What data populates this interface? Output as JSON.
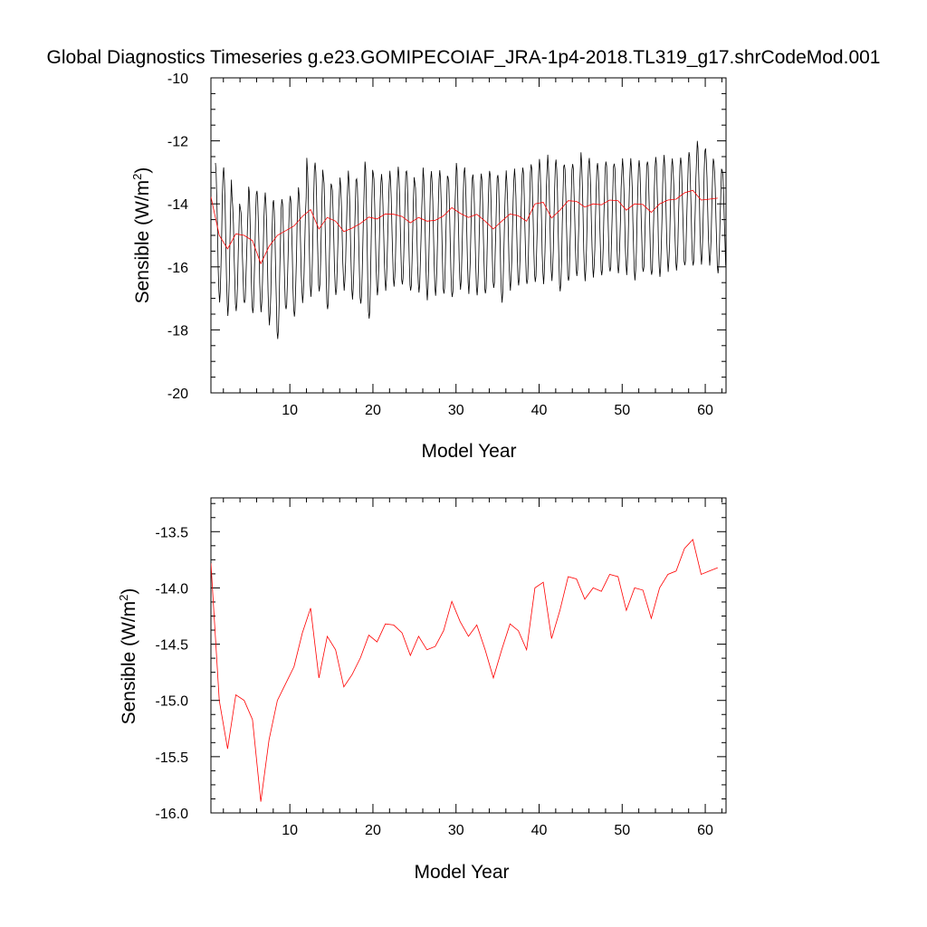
{
  "title": "Global Diagnostics Timeseries g.e23.GOMIPECOIAF_JRA-1p4-2018.TL319_g17.shrCodeMod.001",
  "colors": {
    "monthly": "#000000",
    "annual": "#ff0000"
  },
  "chart_data": [
    {
      "type": "line",
      "xlabel": "Model Year",
      "ylabel_text": "Sensible (W/m",
      "ylabel_sup": "2",
      "ylabel_close": ")",
      "xlim": [
        0.5,
        62.5
      ],
      "ylim": [
        -20,
        -10
      ],
      "xticks": [
        10,
        20,
        30,
        40,
        50,
        60
      ],
      "xtick_labels": [
        "10",
        "20",
        "30",
        "40",
        "50",
        "60"
      ],
      "yticks": [
        -20,
        -18,
        -16,
        -14,
        -12,
        -10
      ],
      "ytick_labels": [
        "-20",
        "-18",
        "-16",
        "-14",
        "-12",
        "-10"
      ],
      "series": [
        {
          "name": "monthly",
          "color": "#000000",
          "monthly_min": [
            -17.1,
            -17.5,
            -17.4,
            -17.2,
            -17.5,
            -17.4,
            -17.8,
            -18.3,
            -17.4,
            -17.6,
            -17.1,
            -16.9,
            -16.8,
            -17.4,
            -16.9,
            -16.7,
            -17.0,
            -17.2,
            -17.7,
            -16.9,
            -16.7,
            -16.6,
            -16.6,
            -16.8,
            -16.8,
            -17.0,
            -16.9,
            -16.9,
            -17.0,
            -16.7,
            -16.8,
            -16.9,
            -16.9,
            -16.7,
            -17.1,
            -16.7,
            -16.6,
            -16.6,
            -16.5,
            -16.5,
            -16.4,
            -16.8,
            -16.5,
            -16.3,
            -16.4,
            -16.3,
            -16.3,
            -16.2,
            -16.2,
            -16.2,
            -16.4,
            -16.2,
            -16.3,
            -16.3,
            -16.1,
            -16.1,
            -16.0,
            -16.0,
            -15.9,
            -15.9,
            -16.2,
            -16.1
          ],
          "monthly_max": [
            -12.7,
            -12.9,
            -13.8,
            -14.1,
            -13.4,
            -13.6,
            -13.7,
            -13.9,
            -13.8,
            -13.7,
            -13.5,
            -12.6,
            -12.7,
            -13.1,
            -13.4,
            -13.2,
            -13.0,
            -13.2,
            -12.6,
            -13.0,
            -13.1,
            -13.0,
            -12.8,
            -12.9,
            -13.3,
            -12.9,
            -13.0,
            -12.9,
            -13.1,
            -12.7,
            -12.9,
            -13.1,
            -13.0,
            -12.9,
            -13.1,
            -13.0,
            -12.9,
            -12.8,
            -12.7,
            -12.6,
            -12.5,
            -12.6,
            -12.7,
            -12.7,
            -12.4,
            -12.6,
            -12.7,
            -12.6,
            -12.7,
            -12.6,
            -12.6,
            -12.6,
            -12.6,
            -12.5,
            -12.5,
            -12.6,
            -12.5,
            -12.3,
            -12.0,
            -12.3,
            -12.7,
            -12.9
          ]
        },
        {
          "name": "annual",
          "color": "#ff0000",
          "x": [
            0.5,
            1.5,
            2.5,
            3.5,
            4.5,
            5.5,
            6.5,
            7.5,
            8.5,
            9.5,
            10.5,
            11.5,
            12.5,
            13.5,
            14.5,
            15.5,
            16.5,
            17.5,
            18.5,
            19.5,
            20.5,
            21.5,
            22.5,
            23.5,
            24.5,
            25.5,
            26.5,
            27.5,
            28.5,
            29.5,
            30.5,
            31.5,
            32.5,
            33.5,
            34.5,
            35.5,
            36.5,
            37.5,
            38.5,
            39.5,
            40.5,
            41.5,
            42.5,
            43.5,
            44.5,
            45.5,
            46.5,
            47.5,
            48.5,
            49.5,
            50.5,
            51.5,
            52.5,
            53.5,
            54.5,
            55.5,
            56.5,
            57.5,
            58.5,
            59.5,
            60.5,
            61.5
          ],
          "values": [
            -13.78,
            -15.0,
            -15.43,
            -14.95,
            -15.0,
            -15.17,
            -15.9,
            -15.35,
            -15.0,
            -14.85,
            -14.7,
            -14.4,
            -14.18,
            -14.8,
            -14.43,
            -14.55,
            -14.88,
            -14.77,
            -14.62,
            -14.42,
            -14.48,
            -14.32,
            -14.33,
            -14.4,
            -14.6,
            -14.43,
            -14.55,
            -14.52,
            -14.38,
            -14.12,
            -14.3,
            -14.43,
            -14.33,
            -14.55,
            -14.8,
            -14.55,
            -14.32,
            -14.38,
            -14.55,
            -14.0,
            -13.95,
            -14.45,
            -14.2,
            -13.9,
            -13.92,
            -14.1,
            -14.0,
            -14.03,
            -13.88,
            -13.9,
            -14.2,
            -14.0,
            -14.02,
            -14.27,
            -14.0,
            -13.88,
            -13.85,
            -13.65,
            -13.57,
            -13.88,
            -13.85,
            -13.82
          ]
        }
      ]
    },
    {
      "type": "line",
      "xlabel": "Model Year",
      "ylabel_text": "Sensible (W/m",
      "ylabel_sup": "2",
      "ylabel_close": ")",
      "xlim": [
        0.5,
        62.5
      ],
      "ylim": [
        -16.0,
        -13.2
      ],
      "xticks": [
        10,
        20,
        30,
        40,
        50,
        60
      ],
      "xtick_labels": [
        "10",
        "20",
        "30",
        "40",
        "50",
        "60"
      ],
      "yticks": [
        -16.0,
        -15.5,
        -15.0,
        -14.5,
        -14.0,
        -13.5
      ],
      "ytick_labels": [
        "-16.0",
        "-15.5",
        "-15.0",
        "-14.5",
        "-14.0",
        "-13.5"
      ],
      "series": [
        {
          "name": "annual",
          "color": "#ff0000",
          "x": [
            0.5,
            1.5,
            2.5,
            3.5,
            4.5,
            5.5,
            6.5,
            7.5,
            8.5,
            9.5,
            10.5,
            11.5,
            12.5,
            13.5,
            14.5,
            15.5,
            16.5,
            17.5,
            18.5,
            19.5,
            20.5,
            21.5,
            22.5,
            23.5,
            24.5,
            25.5,
            26.5,
            27.5,
            28.5,
            29.5,
            30.5,
            31.5,
            32.5,
            33.5,
            34.5,
            35.5,
            36.5,
            37.5,
            38.5,
            39.5,
            40.5,
            41.5,
            42.5,
            43.5,
            44.5,
            45.5,
            46.5,
            47.5,
            48.5,
            49.5,
            50.5,
            51.5,
            52.5,
            53.5,
            54.5,
            55.5,
            56.5,
            57.5,
            58.5,
            59.5,
            60.5,
            61.5
          ],
          "values": [
            -13.78,
            -15.0,
            -15.43,
            -14.95,
            -15.0,
            -15.17,
            -15.9,
            -15.35,
            -15.0,
            -14.85,
            -14.7,
            -14.4,
            -14.18,
            -14.8,
            -14.43,
            -14.55,
            -14.88,
            -14.77,
            -14.62,
            -14.42,
            -14.48,
            -14.32,
            -14.33,
            -14.4,
            -14.6,
            -14.43,
            -14.55,
            -14.52,
            -14.38,
            -14.12,
            -14.3,
            -14.43,
            -14.33,
            -14.55,
            -14.8,
            -14.55,
            -14.32,
            -14.38,
            -14.55,
            -14.0,
            -13.95,
            -14.45,
            -14.2,
            -13.9,
            -13.92,
            -14.1,
            -14.0,
            -14.03,
            -13.88,
            -13.9,
            -14.2,
            -14.0,
            -14.02,
            -14.27,
            -14.0,
            -13.88,
            -13.85,
            -13.65,
            -13.57,
            -13.88,
            -13.85,
            -13.82
          ]
        }
      ]
    }
  ]
}
